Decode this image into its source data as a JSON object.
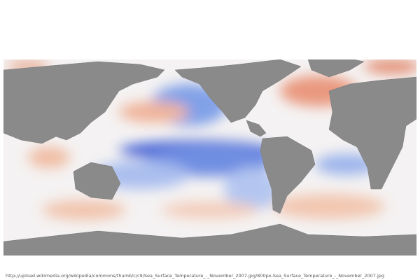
{
  "caption": "http://upload.wikimedia.org/wikipedia/commons/thumb/c/c9/Sea_Surface_Temperature_-_November_2007.jpg/800px-Sea_Surface_Temperature_-_November_2007.jpg"
}
